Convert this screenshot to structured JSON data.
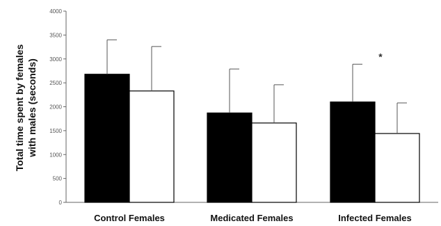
{
  "chart_data": {
    "type": "bar",
    "title": "",
    "xlabel": "",
    "ylabel_lines": [
      "Total time spent by females",
      "with males (seconds)"
    ],
    "categories": [
      "Control Females",
      "Medicated Females",
      "Infected Females"
    ],
    "y_ticks": [
      "4000",
      "3500",
      "3000",
      "2500",
      "2000",
      "1500",
      "1000",
      "500",
      "0"
    ],
    "ylim": [
      0,
      4000
    ],
    "grid": false,
    "legend": "none",
    "series": [
      {
        "fill": "#000000",
        "values": [
          2680,
          1870,
          2100
        ],
        "errors": [
          720,
          920,
          790
        ]
      },
      {
        "fill": "#ffffff",
        "values": [
          2330,
          1660,
          1440
        ],
        "errors": [
          930,
          800,
          640
        ]
      }
    ],
    "annotations": [
      {
        "text": "*",
        "category_index": 2,
        "value": 3050
      }
    ]
  }
}
